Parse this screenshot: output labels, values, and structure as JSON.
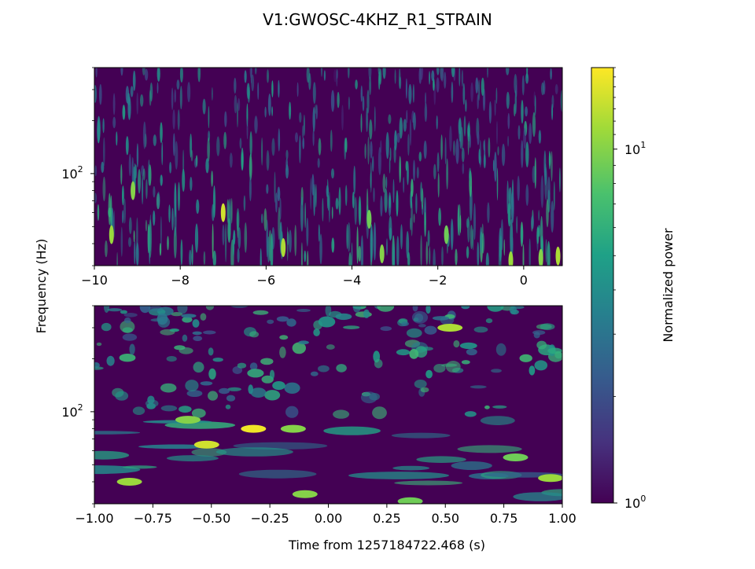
{
  "chart_data": {
    "type": "heatmap",
    "title": "V1:GWOSC-4KHZ_R1_STRAIN",
    "ylabel": "Frequency (Hz)",
    "xlabel": "Time from 1257184722.468 (s)",
    "colormap": "viridis",
    "colorbar": {
      "label": "Normalized power",
      "scale": "log",
      "range": [
        1,
        17
      ],
      "ticks": [
        {
          "value": 1,
          "base": "10",
          "exp": "0"
        },
        {
          "value": 10,
          "base": "10",
          "exp": "1"
        }
      ]
    },
    "panels": [
      {
        "name": "top",
        "xlim": [
          -10,
          0.9
        ],
        "yscale": "log",
        "ylim": [
          30,
          400
        ],
        "xticks": [
          {
            "value": -10,
            "label": "−10"
          },
          {
            "value": -8,
            "label": "−8"
          },
          {
            "value": -6,
            "label": "−6"
          },
          {
            "value": -4,
            "label": "−4"
          },
          {
            "value": -2,
            "label": "−2"
          },
          {
            "value": 0,
            "label": "0"
          }
        ],
        "yticks": [
          {
            "value": 100,
            "base": "10",
            "exp": "2"
          }
        ],
        "bright_spots": [
          {
            "t": -9.6,
            "f": 45,
            "power": 11
          },
          {
            "t": -9.1,
            "f": 80,
            "power": 10
          },
          {
            "t": -7.0,
            "f": 60,
            "power": 14
          },
          {
            "t": -5.6,
            "f": 38,
            "power": 12
          },
          {
            "t": -3.3,
            "f": 35,
            "power": 10
          },
          {
            "t": -3.6,
            "f": 55,
            "power": 9
          },
          {
            "t": -1.8,
            "f": 45,
            "power": 9
          },
          {
            "t": -0.3,
            "f": 32,
            "power": 11
          },
          {
            "t": 0.4,
            "f": 33,
            "power": 10
          },
          {
            "t": 0.8,
            "f": 34,
            "power": 12
          }
        ]
      },
      {
        "name": "bottom",
        "xlim": [
          -1,
          1
        ],
        "yscale": "log",
        "ylim": [
          30,
          400
        ],
        "xticks": [
          {
            "value": -1,
            "label": "−1.00"
          },
          {
            "value": -0.75,
            "label": "−0.75"
          },
          {
            "value": -0.5,
            "label": "−0.50"
          },
          {
            "value": -0.25,
            "label": "−0.25"
          },
          {
            "value": 0,
            "label": "0.00"
          },
          {
            "value": 0.25,
            "label": "0.25"
          },
          {
            "value": 0.5,
            "label": "0.50"
          },
          {
            "value": 0.75,
            "label": "0.75"
          },
          {
            "value": 1,
            "label": "1.00"
          }
        ],
        "yticks": [
          {
            "value": 100,
            "base": "10",
            "exp": "2"
          }
        ],
        "bright_spots": [
          {
            "t": -0.52,
            "f": 65,
            "power": 14
          },
          {
            "t": -0.32,
            "f": 80,
            "power": 16
          },
          {
            "t": -0.15,
            "f": 80,
            "power": 10
          },
          {
            "t": -0.6,
            "f": 90,
            "power": 10
          },
          {
            "t": -0.85,
            "f": 40,
            "power": 11
          },
          {
            "t": -0.1,
            "f": 34,
            "power": 10
          },
          {
            "t": 0.35,
            "f": 31,
            "power": 9
          },
          {
            "t": 0.52,
            "f": 300,
            "power": 12
          },
          {
            "t": 0.95,
            "f": 42,
            "power": 11
          },
          {
            "t": 0.8,
            "f": 55,
            "power": 9
          }
        ]
      }
    ]
  }
}
